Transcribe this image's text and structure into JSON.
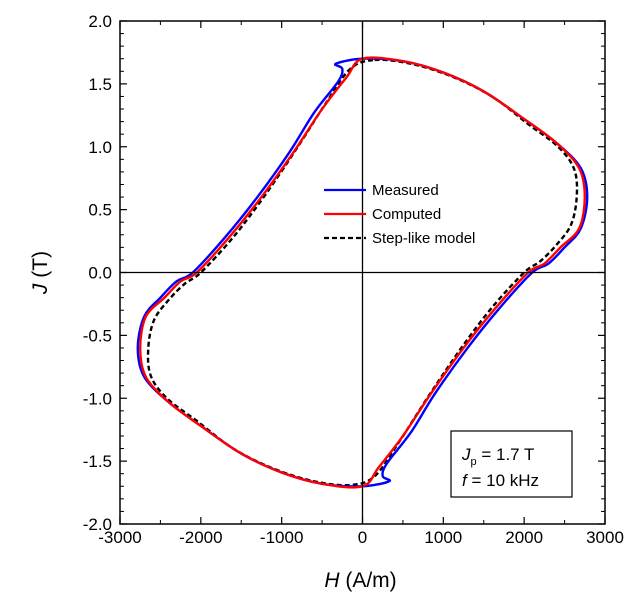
{
  "chart_data": {
    "type": "line",
    "xlabel_var": "H",
    "xlabel_unit": " (A/m)",
    "ylabel_var": "J",
    "ylabel_unit": " (T)",
    "xlim": [
      -3000,
      3000
    ],
    "ylim": [
      -2.0,
      2.0
    ],
    "xticks": [
      -3000,
      -2000,
      -1000,
      0,
      1000,
      2000,
      3000
    ],
    "xtick_labels": [
      "-3000",
      "-2000",
      "-1000",
      "0",
      "1000",
      "2000",
      "3000"
    ],
    "yticks": [
      -2.0,
      -1.5,
      -1.0,
      -0.5,
      0.0,
      0.5,
      1.0,
      1.5,
      2.0
    ],
    "ytick_labels": [
      "-2.0",
      "-1.5",
      "-1.0",
      "-0.5",
      "0.0",
      "0.5",
      "1.0",
      "1.5",
      "2.0"
    ],
    "grid": false,
    "legend_position": "center",
    "series": [
      {
        "name": "Measured",
        "color": "#0000ff",
        "style": "solid",
        "x": [
          0,
          500,
          1000,
          1500,
          2000,
          2400,
          2700,
          2780,
          2700,
          2500,
          2300,
          2100,
          1700,
          1300,
          900,
          600,
          300,
          250,
          330,
          0,
          -500,
          -1000,
          -1500,
          -2000,
          -2400,
          -2700,
          -2780,
          -2700,
          -2500,
          -2300,
          -2100,
          -1700,
          -1300,
          -900,
          -600,
          -300,
          -250,
          -330,
          0
        ],
        "y": [
          1.7,
          1.68,
          1.59,
          1.44,
          1.22,
          1.03,
          0.83,
          0.6,
          0.35,
          0.2,
          0.07,
          0.0,
          -0.28,
          -0.6,
          -0.96,
          -1.27,
          -1.52,
          -1.62,
          -1.66,
          -1.7,
          -1.68,
          -1.59,
          -1.44,
          -1.22,
          -1.03,
          -0.83,
          -0.6,
          -0.35,
          -0.2,
          -0.07,
          0.0,
          0.28,
          0.6,
          0.96,
          1.27,
          1.52,
          1.62,
          1.66,
          1.7
        ]
      },
      {
        "name": "Computed",
        "color": "#ff0000",
        "style": "solid",
        "x": [
          0,
          500,
          1000,
          1500,
          2000,
          2400,
          2680,
          2750,
          2680,
          2450,
          2250,
          2050,
          1650,
          1250,
          850,
          500,
          200,
          0,
          -500,
          -1000,
          -1500,
          -2000,
          -2400,
          -2680,
          -2750,
          -2680,
          -2450,
          -2250,
          -2050,
          -1650,
          -1250,
          -850,
          -500,
          -200,
          0
        ],
        "y": [
          1.7,
          1.68,
          1.59,
          1.44,
          1.22,
          1.03,
          0.83,
          0.6,
          0.35,
          0.2,
          0.07,
          0.0,
          -0.28,
          -0.6,
          -0.96,
          -1.3,
          -1.55,
          -1.7,
          -1.68,
          -1.59,
          -1.44,
          -1.22,
          -1.03,
          -0.83,
          -0.6,
          -0.35,
          -0.2,
          -0.07,
          0.0,
          0.28,
          0.6,
          0.96,
          1.3,
          1.55,
          1.7
        ]
      },
      {
        "name": "Step-like model",
        "color": "#000000",
        "style": "dashed",
        "x": [
          150,
          600,
          1100,
          1600,
          2050,
          2420,
          2620,
          2650,
          2580,
          2400,
          2200,
          2000,
          1600,
          1200,
          800,
          450,
          150,
          -150,
          -600,
          -1100,
          -1600,
          -2050,
          -2420,
          -2620,
          -2650,
          -2580,
          -2400,
          -2200,
          -2000,
          -1600,
          -1200,
          -800,
          -450,
          -150,
          150
        ],
        "y": [
          1.69,
          1.66,
          1.56,
          1.4,
          1.18,
          1.0,
          0.82,
          0.6,
          0.38,
          0.22,
          0.09,
          0.0,
          -0.28,
          -0.62,
          -1.0,
          -1.35,
          -1.62,
          -1.69,
          -1.66,
          -1.56,
          -1.4,
          -1.18,
          -1.0,
          -0.82,
          -0.6,
          -0.38,
          -0.22,
          -0.09,
          0.0,
          0.28,
          0.62,
          1.0,
          1.35,
          1.62,
          1.69
        ]
      }
    ],
    "annotation": {
      "line1_var": "J",
      "line1_sub": "p",
      "line1_rest": " = 1.7 T",
      "line2_var": "f",
      "line2_rest": " = 10 kHz"
    }
  }
}
